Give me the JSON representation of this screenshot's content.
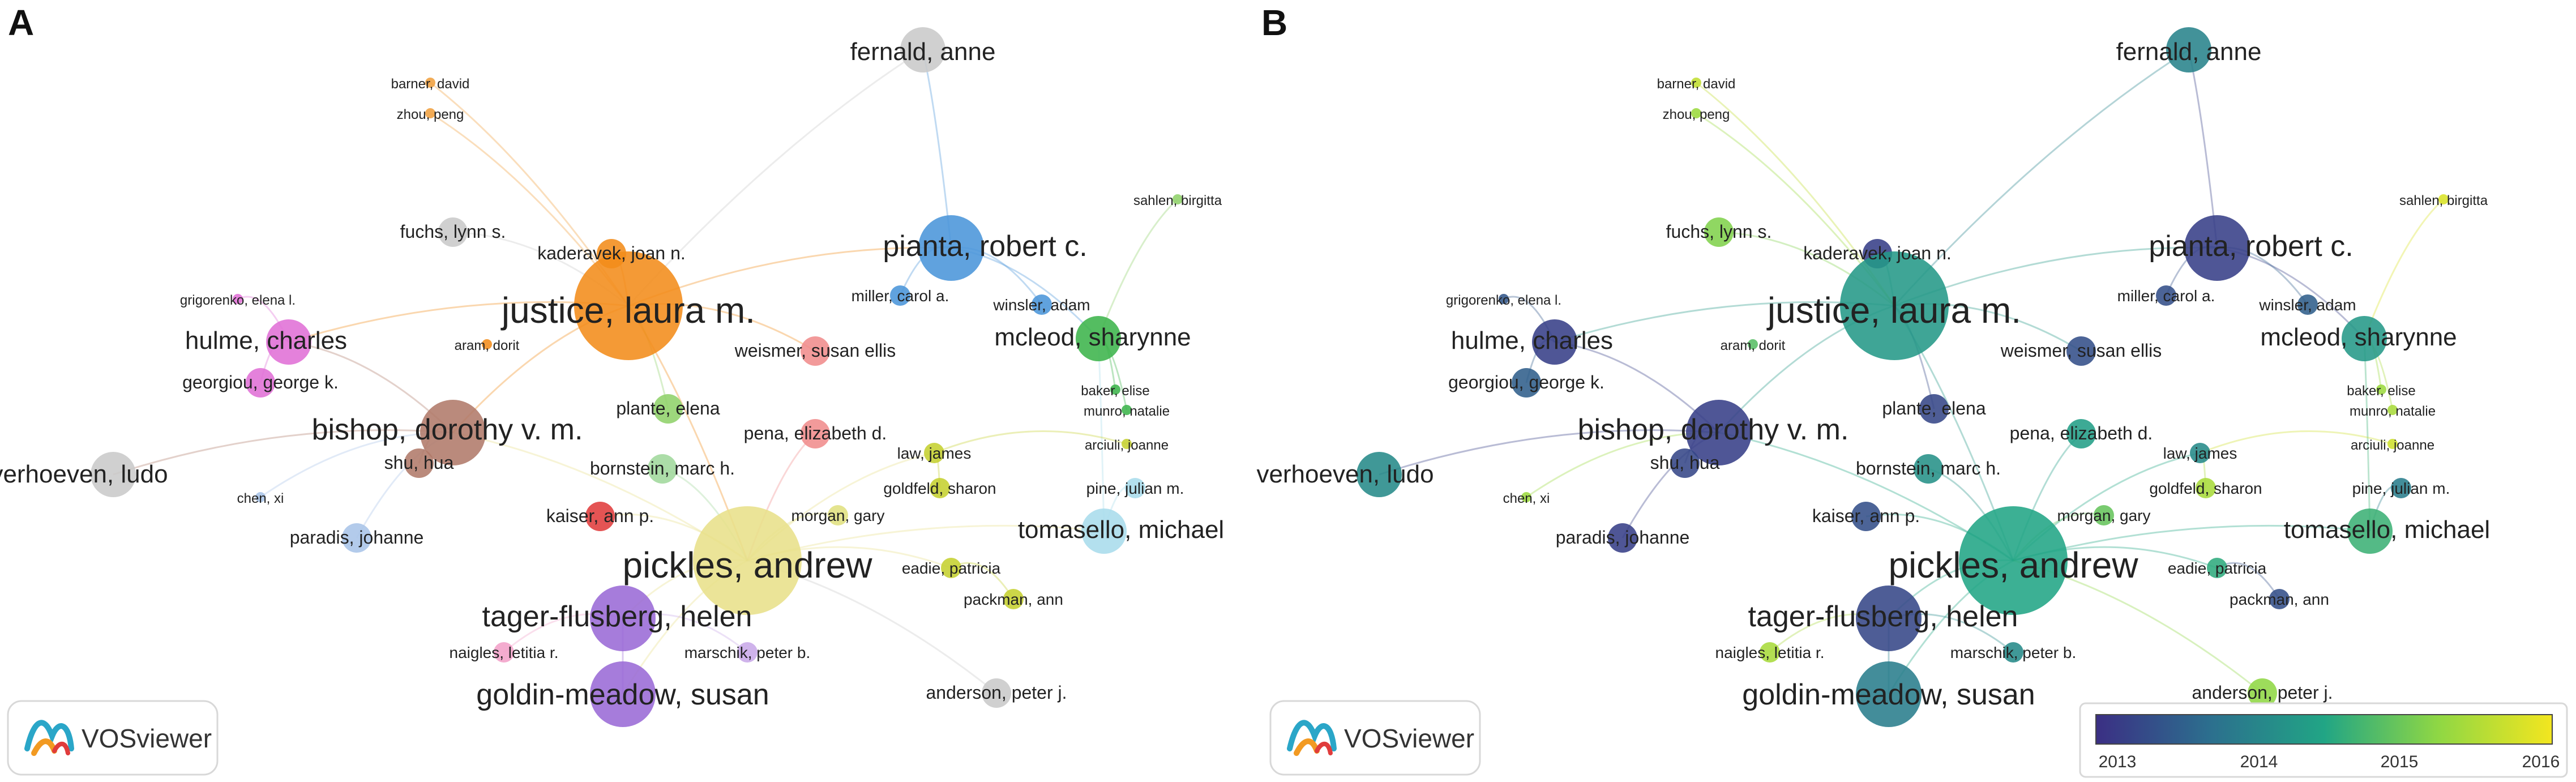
{
  "panels": [
    {
      "letter": "A",
      "mode": "cluster"
    },
    {
      "letter": "B",
      "mode": "overlay"
    }
  ],
  "logo_text": "VOSviewer",
  "colorbar": {
    "ticks": [
      "2013",
      "2014",
      "2015",
      "2016"
    ],
    "colors": [
      "#3b2f84",
      "#2c6f8e",
      "#21a585",
      "#8fd744",
      "#f3e61f"
    ]
  },
  "nodes": [
    {
      "id": "fernald",
      "label": "fernald, anne",
      "size": "lg",
      "cluster": "#c9c9c9",
      "year": 2014.1
    },
    {
      "id": "barner",
      "label": "barner, david",
      "size": "xs",
      "cluster": "#f0a040",
      "year": 2015.8
    },
    {
      "id": "zhou",
      "label": "zhou, peng",
      "size": "xs",
      "cluster": "#f0a040",
      "year": 2015.5
    },
    {
      "id": "fuchs",
      "label": "fuchs, lynn s.",
      "size": "md",
      "cluster": "#c9c9c9",
      "year": 2015.3
    },
    {
      "id": "kaderavek",
      "label": "kaderavek, joan n.",
      "size": "md",
      "cluster": "#f28c1a",
      "year": 2013.2
    },
    {
      "id": "pianta",
      "label": "pianta, robert c.",
      "size": "xl",
      "cluster": "#4a95d9",
      "year": 2013.2
    },
    {
      "id": "sahlen",
      "label": "sahlen, birgitta",
      "size": "xs",
      "cluster": "#8fd16a",
      "year": 2016.0
    },
    {
      "id": "grigorenko",
      "label": "grigorenko, elena l.",
      "size": "xs",
      "cluster": "#e070d6",
      "year": 2013.5
    },
    {
      "id": "justice",
      "label": "justice, laura m.",
      "size": "xxl",
      "cluster": "#f28c1a",
      "year": 2014.4
    },
    {
      "id": "miller",
      "label": "miller, carol a.",
      "size": "sm",
      "cluster": "#4a95d9",
      "year": 2013.4
    },
    {
      "id": "winsler",
      "label": "winsler, adam",
      "size": "sm",
      "cluster": "#4a95d9",
      "year": 2013.6
    },
    {
      "id": "hulme",
      "label": "hulme, charles",
      "size": "lg",
      "cluster": "#e070d6",
      "year": 2013.2
    },
    {
      "id": "aram",
      "label": "aram, dorit",
      "size": "xs",
      "cluster": "#f28c1a",
      "year": 2015.0
    },
    {
      "id": "weismer",
      "label": "weismer, susan ellis",
      "size": "md",
      "cluster": "#f08c8c",
      "year": 2013.4
    },
    {
      "id": "mcleod",
      "label": "mcleod, sharynne",
      "size": "lg",
      "cluster": "#3cb44b",
      "year": 2014.4
    },
    {
      "id": "georgiou",
      "label": "georgiou, george k.",
      "size": "md",
      "cluster": "#e070d6",
      "year": 2013.6
    },
    {
      "id": "plante",
      "label": "plante, elena",
      "size": "md",
      "cluster": "#8fd16a",
      "year": 2013.3
    },
    {
      "id": "baker",
      "label": "baker, elise",
      "size": "xs",
      "cluster": "#3cb44b",
      "year": 2015.5
    },
    {
      "id": "munro",
      "label": "munro, natalie",
      "size": "xs",
      "cluster": "#3cb44b",
      "year": 2015.6
    },
    {
      "id": "bishop",
      "label": "bishop, dorothy v. m.",
      "size": "xl",
      "cluster": "#b07a6a",
      "year": 2013.2
    },
    {
      "id": "pena",
      "label": "pena, elizabeth d.",
      "size": "md",
      "cluster": "#f08c8c",
      "year": 2014.5
    },
    {
      "id": "arciuli",
      "label": "arciuli, joanne",
      "size": "xs",
      "cluster": "#c5d030",
      "year": 2015.9
    },
    {
      "id": "law",
      "label": "law, james",
      "size": "sm",
      "cluster": "#c5d030",
      "year": 2014.2
    },
    {
      "id": "verhoeven",
      "label": "verhoeven, ludo",
      "size": "lg",
      "cluster": "#c9c9c9",
      "year": 2014.2
    },
    {
      "id": "shu",
      "label": "shu, hua",
      "size": "md",
      "cluster": "#b07a6a",
      "year": 2013.3
    },
    {
      "id": "bornstein",
      "label": "bornstein, marc h.",
      "size": "md",
      "cluster": "#a0d89c",
      "year": 2014.3
    },
    {
      "id": "chen",
      "label": "chen, xi",
      "size": "xs",
      "cluster": "#a8c4e8",
      "year": 2015.5
    },
    {
      "id": "goldfeld",
      "label": "goldfeld, sharon",
      "size": "sm",
      "cluster": "#c5d030",
      "year": 2015.6
    },
    {
      "id": "pine",
      "label": "pine, julian m.",
      "size": "sm",
      "cluster": "#a8dcec",
      "year": 2014.0
    },
    {
      "id": "morgan",
      "label": "morgan, gary",
      "size": "sm",
      "cluster": "#e0e080",
      "year": 2015.1
    },
    {
      "id": "kaiser",
      "label": "kaiser, ann p.",
      "size": "md",
      "cluster": "#e03c3c",
      "year": 2013.4
    },
    {
      "id": "paradis",
      "label": "paradis, johanne",
      "size": "md",
      "cluster": "#a8c4e8",
      "year": 2013.2
    },
    {
      "id": "pickles",
      "label": "pickles, andrew",
      "size": "xxl",
      "cluster": "#e8e08a",
      "year": 2014.6
    },
    {
      "id": "tomasello",
      "label": "tomasello, michael",
      "size": "lg",
      "cluster": "#a8dcec",
      "year": 2014.8
    },
    {
      "id": "eadie",
      "label": "eadie, patricia",
      "size": "sm",
      "cluster": "#c5d030",
      "year": 2014.7
    },
    {
      "id": "tager",
      "label": "tager-flusberg, helen",
      "size": "xl",
      "cluster": "#9a6ad6",
      "year": 2013.3
    },
    {
      "id": "packman",
      "label": "packman, ann",
      "size": "sm",
      "cluster": "#c5d030",
      "year": 2013.4
    },
    {
      "id": "naigles",
      "label": "naigles, letitia r.",
      "size": "sm",
      "cluster": "#f2a0c8",
      "year": 2015.6
    },
    {
      "id": "marschik",
      "label": "marschik, peter b.",
      "size": "sm",
      "cluster": "#c8a8e8",
      "year": 2014.2
    },
    {
      "id": "goldin",
      "label": "goldin-meadow, susan",
      "size": "xl",
      "cluster": "#9a6ad6",
      "year": 2014.0
    },
    {
      "id": "anderson",
      "label": "anderson, peter j.",
      "size": "md",
      "cluster": "#c9c9c9",
      "year": 2015.4
    }
  ]
}
